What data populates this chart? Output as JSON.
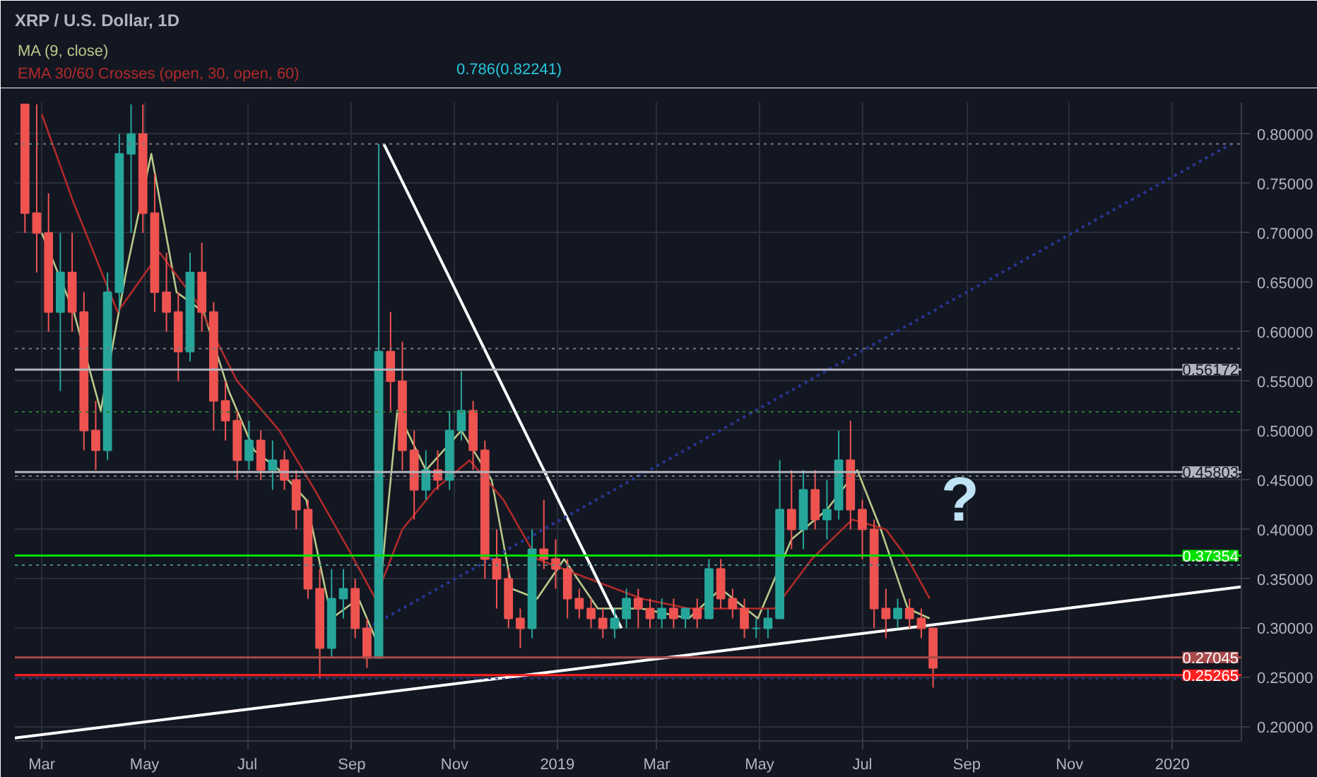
{
  "chart_data": {
    "type": "candlestick",
    "title": "XRP / U.S. Dollar, 1D",
    "x": [
      "2018-02-19",
      "2018-02-26",
      "2018-03-05",
      "2018-03-12",
      "2018-03-19",
      "2018-03-26",
      "2018-04-02",
      "2018-04-09",
      "2018-04-16",
      "2018-04-23",
      "2018-04-30",
      "2018-05-07",
      "2018-05-14",
      "2018-05-21",
      "2018-05-28",
      "2018-06-04",
      "2018-06-11",
      "2018-06-18",
      "2018-06-25",
      "2018-07-02",
      "2018-07-09",
      "2018-07-16",
      "2018-07-23",
      "2018-07-30",
      "2018-08-06",
      "2018-08-13",
      "2018-08-20",
      "2018-08-27",
      "2018-09-03",
      "2018-09-10",
      "2018-09-17",
      "2018-09-24",
      "2018-10-01",
      "2018-10-08",
      "2018-10-15",
      "2018-10-22",
      "2018-10-29",
      "2018-11-05",
      "2018-11-12",
      "2018-11-19",
      "2018-11-26",
      "2018-12-03",
      "2018-12-10",
      "2018-12-17",
      "2018-12-24",
      "2018-12-31",
      "2019-01-07",
      "2019-01-14",
      "2019-01-21",
      "2019-01-28",
      "2019-02-04",
      "2019-02-11",
      "2019-02-18",
      "2019-02-25",
      "2019-03-04",
      "2019-03-11",
      "2019-03-18",
      "2019-03-25",
      "2019-04-01",
      "2019-04-08",
      "2019-04-15",
      "2019-04-22",
      "2019-04-29",
      "2019-05-06",
      "2019-05-13",
      "2019-05-20",
      "2019-05-27",
      "2019-06-03",
      "2019-06-10",
      "2019-06-17",
      "2019-06-24",
      "2019-07-01",
      "2019-07-08",
      "2019-07-15",
      "2019-07-22",
      "2019-07-29",
      "2019-08-05",
      "2019-08-12"
    ],
    "ohlc": [
      [
        0.83,
        0.83,
        0.7,
        0.72
      ],
      [
        0.72,
        0.83,
        0.66,
        0.7
      ],
      [
        0.7,
        0.74,
        0.6,
        0.62
      ],
      [
        0.62,
        0.7,
        0.54,
        0.66
      ],
      [
        0.66,
        0.7,
        0.6,
        0.62
      ],
      [
        0.62,
        0.64,
        0.48,
        0.5
      ],
      [
        0.5,
        0.53,
        0.46,
        0.48
      ],
      [
        0.48,
        0.66,
        0.47,
        0.64
      ],
      [
        0.64,
        0.8,
        0.62,
        0.78
      ],
      [
        0.78,
        0.83,
        0.7,
        0.8
      ],
      [
        0.8,
        0.83,
        0.7,
        0.72
      ],
      [
        0.72,
        0.76,
        0.62,
        0.64
      ],
      [
        0.64,
        0.68,
        0.6,
        0.62
      ],
      [
        0.62,
        0.64,
        0.55,
        0.58
      ],
      [
        0.58,
        0.68,
        0.57,
        0.66
      ],
      [
        0.66,
        0.69,
        0.6,
        0.62
      ],
      [
        0.62,
        0.63,
        0.5,
        0.53
      ],
      [
        0.53,
        0.55,
        0.49,
        0.51
      ],
      [
        0.51,
        0.52,
        0.45,
        0.47
      ],
      [
        0.47,
        0.51,
        0.46,
        0.49
      ],
      [
        0.49,
        0.5,
        0.45,
        0.46
      ],
      [
        0.46,
        0.49,
        0.44,
        0.47
      ],
      [
        0.47,
        0.48,
        0.44,
        0.45
      ],
      [
        0.45,
        0.46,
        0.4,
        0.42
      ],
      [
        0.42,
        0.43,
        0.33,
        0.34
      ],
      [
        0.34,
        0.36,
        0.25,
        0.28
      ],
      [
        0.28,
        0.36,
        0.27,
        0.33
      ],
      [
        0.33,
        0.36,
        0.31,
        0.34
      ],
      [
        0.34,
        0.35,
        0.29,
        0.3
      ],
      [
        0.3,
        0.31,
        0.26,
        0.27
      ],
      [
        0.27,
        0.79,
        0.27,
        0.58
      ],
      [
        0.58,
        0.62,
        0.52,
        0.55
      ],
      [
        0.55,
        0.59,
        0.46,
        0.48
      ],
      [
        0.48,
        0.5,
        0.41,
        0.44
      ],
      [
        0.44,
        0.48,
        0.43,
        0.46
      ],
      [
        0.46,
        0.48,
        0.44,
        0.45
      ],
      [
        0.45,
        0.52,
        0.44,
        0.5
      ],
      [
        0.5,
        0.56,
        0.49,
        0.52
      ],
      [
        0.52,
        0.53,
        0.46,
        0.48
      ],
      [
        0.48,
        0.49,
        0.35,
        0.37
      ],
      [
        0.37,
        0.4,
        0.32,
        0.35
      ],
      [
        0.35,
        0.36,
        0.3,
        0.31
      ],
      [
        0.31,
        0.32,
        0.28,
        0.3
      ],
      [
        0.3,
        0.4,
        0.29,
        0.38
      ],
      [
        0.38,
        0.43,
        0.36,
        0.37
      ],
      [
        0.37,
        0.39,
        0.34,
        0.36
      ],
      [
        0.36,
        0.37,
        0.31,
        0.33
      ],
      [
        0.33,
        0.34,
        0.31,
        0.32
      ],
      [
        0.32,
        0.33,
        0.3,
        0.31
      ],
      [
        0.31,
        0.32,
        0.29,
        0.3
      ],
      [
        0.3,
        0.32,
        0.29,
        0.31
      ],
      [
        0.31,
        0.34,
        0.3,
        0.33
      ],
      [
        0.33,
        0.34,
        0.3,
        0.32
      ],
      [
        0.32,
        0.33,
        0.3,
        0.31
      ],
      [
        0.31,
        0.33,
        0.3,
        0.32
      ],
      [
        0.32,
        0.33,
        0.3,
        0.31
      ],
      [
        0.31,
        0.32,
        0.3,
        0.32
      ],
      [
        0.32,
        0.33,
        0.3,
        0.31
      ],
      [
        0.31,
        0.37,
        0.31,
        0.36
      ],
      [
        0.36,
        0.37,
        0.32,
        0.33
      ],
      [
        0.33,
        0.34,
        0.31,
        0.32
      ],
      [
        0.32,
        0.33,
        0.29,
        0.3
      ],
      [
        0.3,
        0.31,
        0.29,
        0.3
      ],
      [
        0.3,
        0.32,
        0.29,
        0.31
      ],
      [
        0.31,
        0.47,
        0.31,
        0.42
      ],
      [
        0.42,
        0.46,
        0.38,
        0.4
      ],
      [
        0.4,
        0.46,
        0.38,
        0.44
      ],
      [
        0.44,
        0.46,
        0.4,
        0.41
      ],
      [
        0.41,
        0.45,
        0.39,
        0.42
      ],
      [
        0.42,
        0.5,
        0.41,
        0.47
      ],
      [
        0.47,
        0.51,
        0.4,
        0.42
      ],
      [
        0.42,
        0.43,
        0.37,
        0.4
      ],
      [
        0.4,
        0.41,
        0.3,
        0.32
      ],
      [
        0.32,
        0.34,
        0.29,
        0.31
      ],
      [
        0.31,
        0.33,
        0.3,
        0.32
      ],
      [
        0.32,
        0.33,
        0.3,
        0.31
      ],
      [
        0.31,
        0.32,
        0.29,
        0.3
      ],
      [
        0.3,
        0.3,
        0.24,
        0.26
      ]
    ],
    "series": [
      {
        "name": "MA (9, close)",
        "type": "line",
        "color": "#b9c98a",
        "line_style": "solid",
        "x": [
          "2018-03-01",
          "2018-03-20",
          "2018-04-05",
          "2018-04-20",
          "2018-05-05",
          "2018-05-20",
          "2018-06-05",
          "2018-06-20",
          "2018-07-05",
          "2018-07-20",
          "2018-08-05",
          "2018-08-20",
          "2018-09-05",
          "2018-09-15",
          "2018-09-28",
          "2018-10-15",
          "2018-11-05",
          "2018-11-23",
          "2018-12-05",
          "2018-12-20",
          "2019-01-05",
          "2019-01-25",
          "2019-02-20",
          "2019-03-20",
          "2019-04-08",
          "2019-04-30",
          "2019-05-20",
          "2019-06-10",
          "2019-06-28",
          "2019-07-12",
          "2019-07-28",
          "2019-08-10"
        ],
        "values": [
          0.7,
          0.62,
          0.52,
          0.66,
          0.78,
          0.64,
          0.62,
          0.54,
          0.48,
          0.46,
          0.43,
          0.31,
          0.33,
          0.29,
          0.52,
          0.46,
          0.5,
          0.45,
          0.34,
          0.33,
          0.37,
          0.32,
          0.32,
          0.31,
          0.34,
          0.31,
          0.39,
          0.42,
          0.46,
          0.4,
          0.32,
          0.31
        ]
      },
      {
        "name": "EMA 30/60 Crosses (open, 30, open, 60)",
        "type": "line",
        "color": "#b22a2a",
        "line_style": "solid",
        "x": [
          "2018-03-01",
          "2018-03-20",
          "2018-04-15",
          "2018-05-10",
          "2018-06-01",
          "2018-06-25",
          "2018-07-20",
          "2018-08-10",
          "2018-08-30",
          "2018-09-15",
          "2018-10-01",
          "2018-10-20",
          "2018-11-10",
          "2018-11-30",
          "2018-12-20",
          "2019-01-20",
          "2019-02-20",
          "2019-03-20",
          "2019-04-20",
          "2019-05-10",
          "2019-06-01",
          "2019-06-25",
          "2019-07-15",
          "2019-07-28",
          "2019-08-10"
        ],
        "values": [
          0.82,
          0.73,
          0.62,
          0.68,
          0.63,
          0.55,
          0.5,
          0.44,
          0.38,
          0.33,
          0.4,
          0.44,
          0.47,
          0.43,
          0.37,
          0.35,
          0.33,
          0.32,
          0.32,
          0.32,
          0.37,
          0.41,
          0.4,
          0.37,
          0.33
        ]
      },
      {
        "type": "line",
        "color": "#ffffff",
        "line_style": "solid",
        "x": [
          "2018-02-13",
          "2020-02-11"
        ],
        "values": [
          0.189,
          0.342
        ]
      },
      {
        "type": "line",
        "color": "#ffffff",
        "line_style": "solid",
        "x": [
          "2018-09-20",
          "2019-02-08"
        ],
        "values": [
          0.79,
          0.3
        ]
      },
      {
        "type": "line",
        "color": "#283593",
        "line_style": "dotted",
        "x": [
          "2018-09-10",
          "2020-02-05"
        ],
        "values": [
          0.3,
          0.79
        ]
      }
    ],
    "ref_lines": [
      {
        "axis": "y",
        "value": 0.56172,
        "label": "0.56172",
        "color": "#b2b5be",
        "line_style": "solid"
      },
      {
        "axis": "y",
        "value": 0.45803,
        "label": "0.45803",
        "color": "#b2b5be",
        "line_style": "solid"
      },
      {
        "axis": "y",
        "value": 0.37354,
        "label": "0.37354",
        "color": "#00e000",
        "line_style": "solid"
      },
      {
        "axis": "y",
        "value": 0.27045,
        "label": "0.27045",
        "color": "#a84a4a",
        "line_style": "solid"
      },
      {
        "axis": "y",
        "value": 0.25265,
        "label": "0.25265",
        "color": "#ff2020",
        "line_style": "solid"
      },
      {
        "axis": "y",
        "value": 0.79,
        "color": "#787b86",
        "line_style": "dotted"
      },
      {
        "axis": "y",
        "value": 0.583,
        "color": "#787b86",
        "line_style": "dotted"
      },
      {
        "axis": "y",
        "value": 0.519,
        "color": "#2e7d32",
        "line_style": "dotted"
      },
      {
        "axis": "y",
        "value": 0.454,
        "color": "#787b86",
        "line_style": "dotted"
      },
      {
        "axis": "y",
        "value": 0.364,
        "color": "#4a8a8a",
        "line_style": "dotted"
      },
      {
        "axis": "y",
        "value": 0.249,
        "color": "#283593",
        "line_style": "dotted"
      }
    ],
    "annotations": [
      "0.786(0.82241)",
      "?"
    ],
    "xlim": [
      "2018-02-13",
      "2020-02-11"
    ],
    "xticks": [
      {
        "value": "2018-03-01",
        "label": "Mar"
      },
      {
        "value": "2018-05-01",
        "label": "May"
      },
      {
        "value": "2018-07-01",
        "label": "Jul"
      },
      {
        "value": "2018-09-01",
        "label": "Sep"
      },
      {
        "value": "2018-11-01",
        "label": "Nov"
      },
      {
        "value": "2019-01-01",
        "label": "2019"
      },
      {
        "value": "2019-03-01",
        "label": "Mar"
      },
      {
        "value": "2019-05-01",
        "label": "May"
      },
      {
        "value": "2019-07-01",
        "label": "Jul"
      },
      {
        "value": "2019-09-01",
        "label": "Sep"
      },
      {
        "value": "2019-11-01",
        "label": "Nov"
      },
      {
        "value": "2020-01-01",
        "label": "2020"
      }
    ],
    "ylim": [
      0.186,
      0.832
    ],
    "yticks": [
      {
        "value": 0.2,
        "label": "0.20000"
      },
      {
        "value": 0.25,
        "label": "0.25000"
      },
      {
        "value": 0.3,
        "label": "0.30000"
      },
      {
        "value": 0.35,
        "label": "0.35000"
      },
      {
        "value": 0.4,
        "label": "0.40000"
      },
      {
        "value": 0.45,
        "label": "0.45000"
      },
      {
        "value": 0.5,
        "label": "0.50000"
      },
      {
        "value": 0.55,
        "label": "0.55000"
      },
      {
        "value": 0.6,
        "label": "0.60000"
      },
      {
        "value": 0.65,
        "label": "0.65000"
      },
      {
        "value": 0.7,
        "label": "0.70000"
      },
      {
        "value": 0.75,
        "label": "0.75000"
      },
      {
        "value": 0.8,
        "label": "0.80000"
      }
    ],
    "grid": true,
    "legend": "top left"
  }
}
